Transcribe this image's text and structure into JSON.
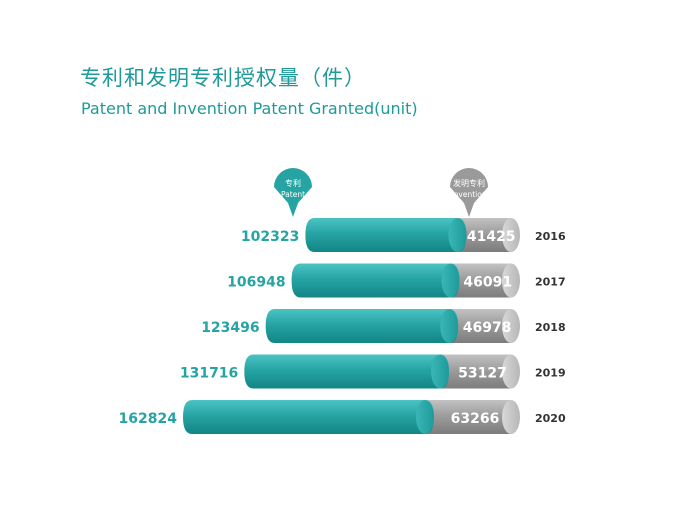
{
  "header": {
    "title_zh": "专利和发明专利授权量（件）",
    "title_en": "Patent and Invention Patent Granted(unit)"
  },
  "colors": {
    "accent": "#1e9a9a",
    "patent": "#26a4a4",
    "invention": "#9a9a9a",
    "year_text": "#333333"
  },
  "chart_data": {
    "type": "bar",
    "orientation": "horizontal",
    "stacked": true,
    "title": "专利和发明专利授权量（件）",
    "subtitle": "Patent and Invention Patent Granted(unit)",
    "categories": [
      "2016",
      "2017",
      "2018",
      "2019",
      "2020"
    ],
    "series": [
      {
        "name": "专利 Patent",
        "values": [
          102323,
          106948,
          123496,
          131716,
          162824
        ]
      },
      {
        "name": "发明专利 Invention",
        "values": [
          41425,
          46091,
          46978,
          53127,
          63266
        ]
      }
    ],
    "legend": [
      {
        "zh": "专利",
        "en": "Patent"
      },
      {
        "zh": "发明专利",
        "en": "Invention"
      }
    ],
    "legend_position": "top",
    "grid": false
  }
}
